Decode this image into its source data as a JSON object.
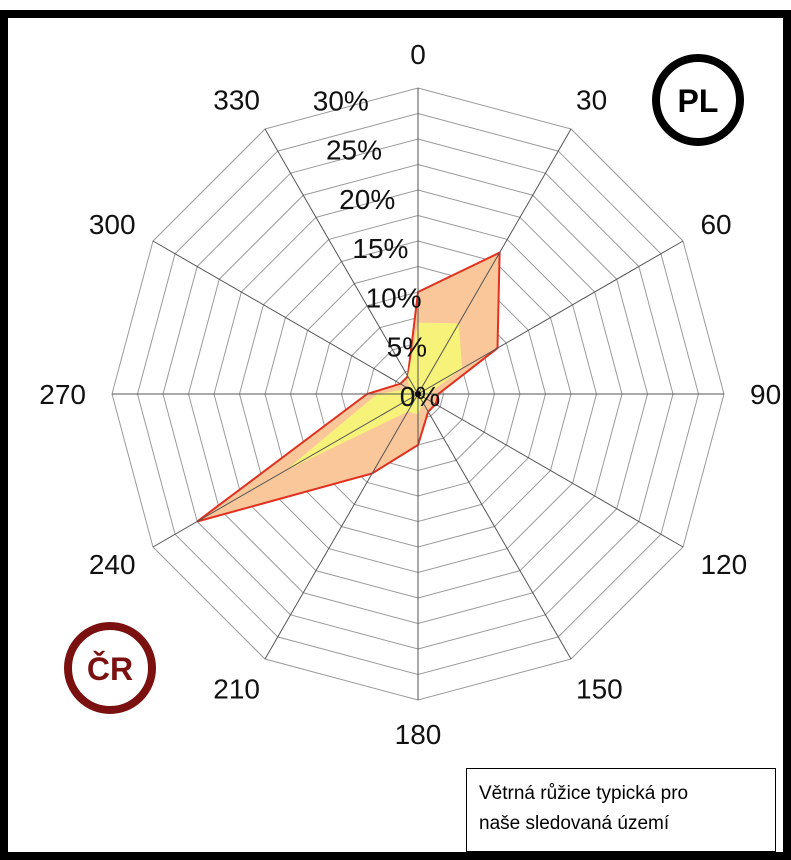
{
  "chart_data": {
    "type": "radar",
    "directions": [
      0,
      30,
      60,
      90,
      120,
      150,
      180,
      210,
      240,
      270,
      300,
      330
    ],
    "direction_labels": [
      "0",
      "30",
      "60",
      "90",
      "120",
      "150",
      "180",
      "210",
      "240",
      "270",
      "300",
      "330"
    ],
    "radial_ticks": [
      "0%",
      "5%",
      "10%",
      "15%",
      "20%",
      "25%",
      "30%"
    ],
    "rlim": [
      0,
      30
    ],
    "series": [
      {
        "values": [
          10,
          16,
          9,
          2,
          2,
          2,
          5,
          9,
          25,
          5,
          2,
          2
        ],
        "color": "#e03020",
        "fill": "#f9c79a"
      },
      {
        "values": [
          7,
          8,
          5,
          1,
          1,
          1,
          2,
          2,
          15,
          4,
          1,
          2
        ],
        "color": "#f7f37a",
        "fill": "#f7f37a"
      }
    ],
    "badges": [
      {
        "text": "PL",
        "color": "#000000"
      },
      {
        "text": "ČR",
        "color": "#7a1010"
      }
    ],
    "caption": {
      "line1": "Větrná růžice typická pro",
      "line2": "naše sledovaná území"
    }
  }
}
